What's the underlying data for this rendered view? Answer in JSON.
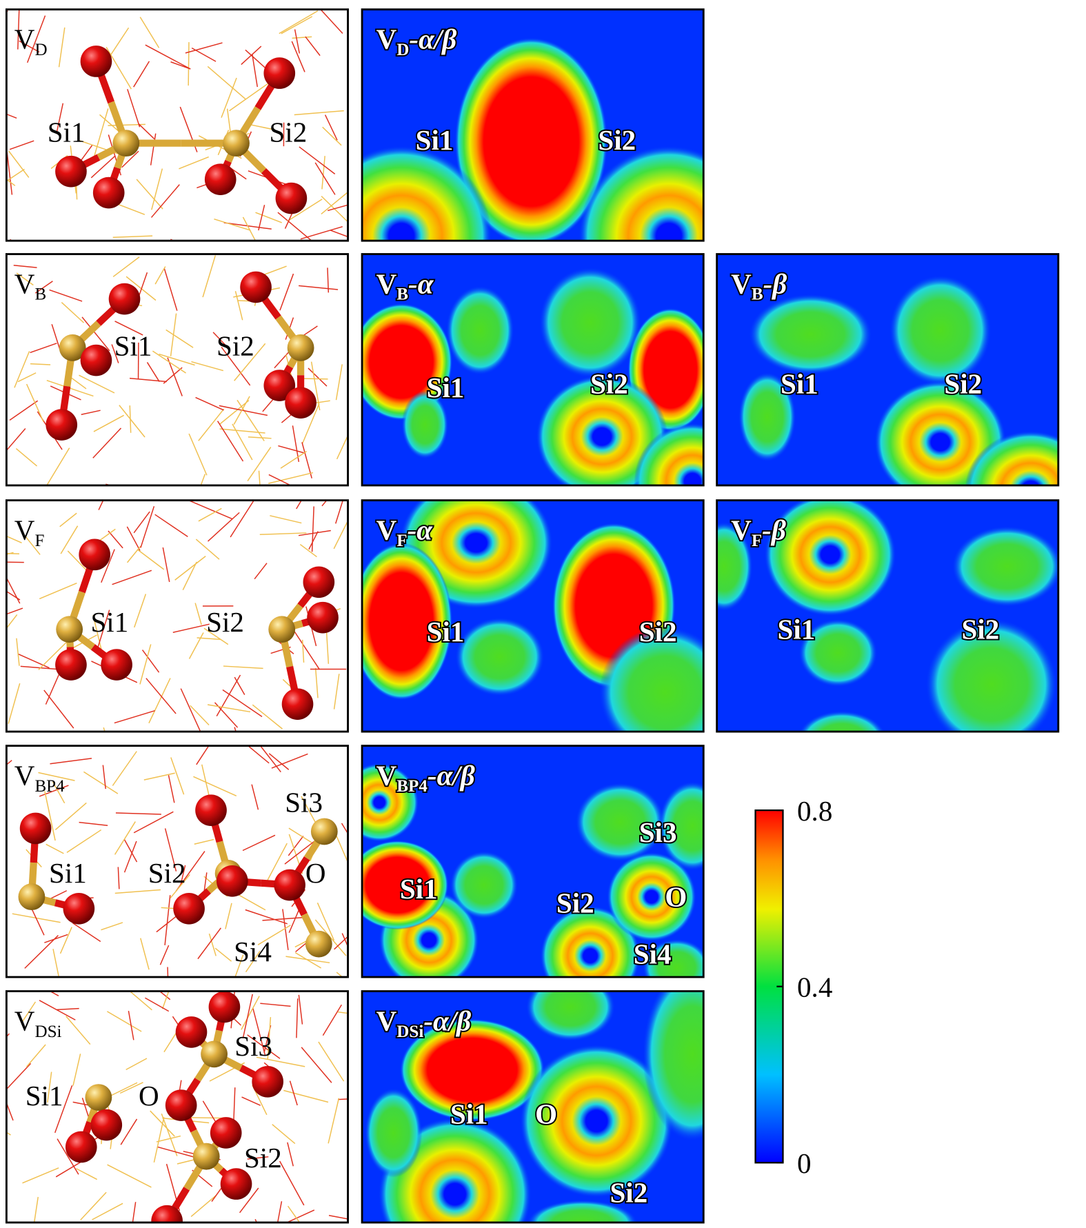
{
  "rows": [
    {
      "structure": {
        "label": "V",
        "sub": "D",
        "atoms": [
          "Si1",
          "Si2"
        ]
      },
      "maps": [
        {
          "label": "V",
          "sub": "D",
          "suffix": "-α/β",
          "atoms": [
            "Si1",
            "Si2"
          ]
        }
      ]
    },
    {
      "structure": {
        "label": "V",
        "sub": "B",
        "atoms": [
          "Si1",
          "Si2"
        ]
      },
      "maps": [
        {
          "label": "V",
          "sub": "B",
          "suffix": "-α",
          "atoms": [
            "Si1",
            "Si2"
          ]
        },
        {
          "label": "V",
          "sub": "B",
          "suffix": "-β",
          "atoms": [
            "Si1",
            "Si2"
          ]
        }
      ]
    },
    {
      "structure": {
        "label": "V",
        "sub": "F",
        "atoms": [
          "Si1",
          "Si2"
        ]
      },
      "maps": [
        {
          "label": "V",
          "sub": "F",
          "suffix": "-α",
          "atoms": [
            "Si1",
            "Si2"
          ]
        },
        {
          "label": "V",
          "sub": "F",
          "suffix": "-β",
          "atoms": [
            "Si1",
            "Si2"
          ]
        }
      ]
    },
    {
      "structure": {
        "label": "V",
        "sub": "BP4",
        "atoms": [
          "Si3",
          "Si1",
          "Si2",
          "O",
          "Si4"
        ]
      },
      "maps": [
        {
          "label": "V",
          "sub": "BP4",
          "suffix": "-α/β",
          "atoms": [
            "Si3",
            "Si1",
            "Si2",
            "O",
            "Si4"
          ]
        }
      ]
    },
    {
      "structure": {
        "label": "V",
        "sub": "DSi",
        "atoms": [
          "Si3",
          "Si1",
          "O",
          "Si2"
        ]
      },
      "maps": [
        {
          "label": "V",
          "sub": "DSi",
          "suffix": "-α/β",
          "atoms": [
            "Si1",
            "O",
            "Si2"
          ]
        }
      ]
    }
  ],
  "colorbar": {
    "range": [
      0,
      0.8
    ],
    "ticks": [
      0,
      0.4,
      0.8
    ]
  }
}
